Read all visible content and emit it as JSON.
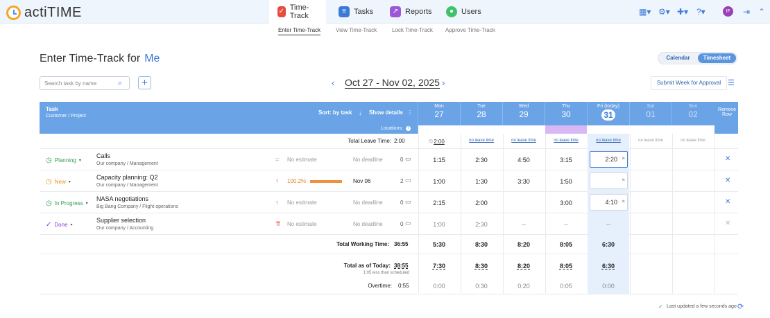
{
  "app": {
    "name": "actiTIME"
  },
  "nav": {
    "tabs": [
      {
        "label": "Time-Track"
      },
      {
        "label": "Tasks"
      },
      {
        "label": "Reports"
      },
      {
        "label": "Users"
      }
    ],
    "subtabs": [
      "Enter Time-Track",
      "View Time-Track",
      "Lock Time-Track",
      "Approve Time-Track"
    ],
    "user_initials": "IF"
  },
  "page": {
    "title": "Enter Time-Track for",
    "user": "Me",
    "view_calendar": "Calendar",
    "view_timesheet": "Timesheet",
    "search_placeholder": "Search task by name",
    "add": "+",
    "date_range": "Oct 27 - Nov 02, 2025",
    "submit": "Submit Week for Approval"
  },
  "table": {
    "task": "Task",
    "customer_project": "Customer  /  Project",
    "sort": "Sort: by task",
    "show_details": "Show details",
    "locations": "Locations:",
    "remove_row": "Remove Row",
    "total_leave": "Total Leave Time:",
    "total_leave_value": "2:00",
    "days": [
      {
        "name": "Mon",
        "num": "27"
      },
      {
        "name": "Tue",
        "num": "28"
      },
      {
        "name": "Wed",
        "num": "29"
      },
      {
        "name": "Thu",
        "num": "30"
      },
      {
        "name": "Fri (today)",
        "num": "31"
      },
      {
        "name": "Sat",
        "num": "01"
      },
      {
        "name": "Sun",
        "num": "02"
      }
    ],
    "leave": [
      "2:00",
      "no leave time",
      "no leave time",
      "no leave time",
      "no leave time",
      "no leave time",
      "no leave time"
    ],
    "rows": [
      {
        "status": "Planning",
        "name": "Calls",
        "project": "Our company / Management",
        "estimate": "No estimate",
        "deadline": "No deadline",
        "comments": "0",
        "days": [
          "1:15",
          "2:30",
          "4:50",
          "3:15",
          "2:20",
          "",
          ""
        ]
      },
      {
        "status": "New",
        "name": "Capacity planning: Q2",
        "project": "Our company / Management",
        "estimate": "100.2%",
        "deadline": "Nov 06",
        "comments": "2",
        "days": [
          "1:00",
          "1:30",
          "3:30",
          "1:50",
          "",
          "",
          ""
        ]
      },
      {
        "status": "In Progress",
        "name": "NASA negotiations",
        "project": "Big Bang Company / Flight operations",
        "estimate": "No estimate",
        "deadline": "No deadline",
        "comments": "0",
        "days": [
          "2:15",
          "2:00",
          "",
          "3:00",
          "4:10",
          "",
          ""
        ]
      },
      {
        "status": "Done",
        "name": "Supplier selection",
        "project": "Our company / Accounting",
        "estimate": "No estimate",
        "deadline": "No deadline",
        "comments": "0",
        "days": [
          "1:00",
          "2:30",
          "--",
          "--",
          "--",
          "",
          ""
        ]
      }
    ],
    "total_working_label": "Total Working Time:",
    "total_working": "36:55",
    "working": [
      "5:30",
      "8:30",
      "8:20",
      "8:05",
      "6:30",
      "",
      ""
    ],
    "total_today_label": "Total as of Today:",
    "total_today": "38:55",
    "today_note": "1:05 less than scheduled",
    "today": [
      "7:30",
      "8:30",
      "8:20",
      "8:05",
      "6:30",
      "",
      ""
    ],
    "overtime_label": "Overtime:",
    "overtime": "0:55",
    "ot": [
      "0:00",
      "0:30",
      "0:20",
      "0:05",
      "0:00",
      "",
      ""
    ]
  },
  "footer": {
    "updated": "Last updated a few seconds ago"
  }
}
